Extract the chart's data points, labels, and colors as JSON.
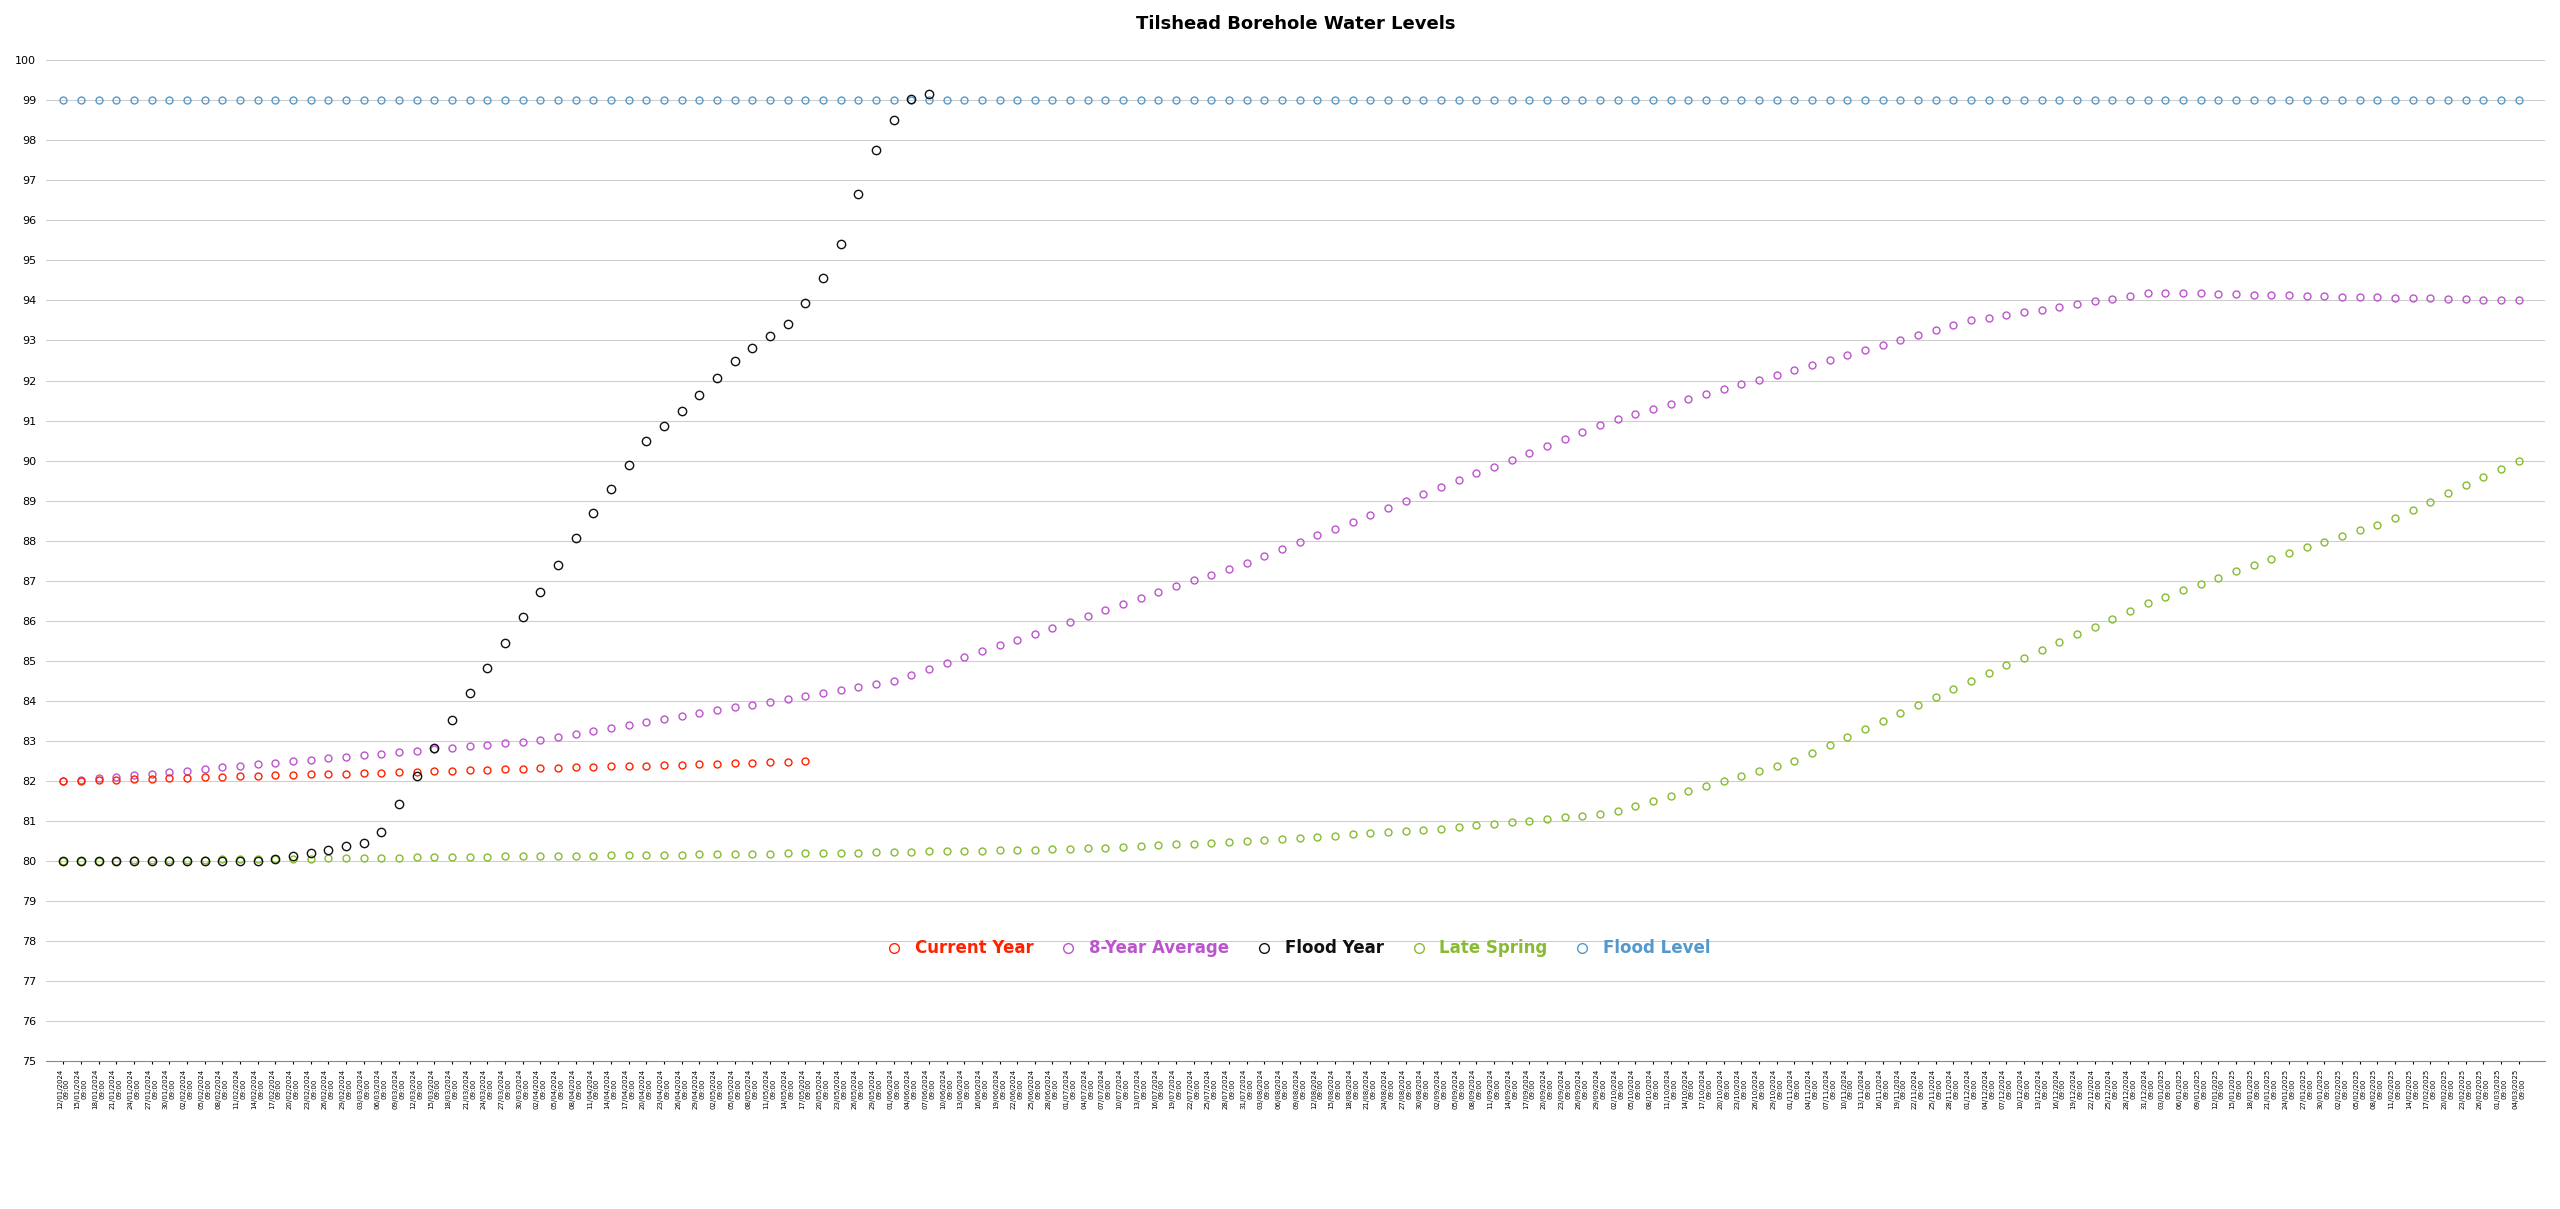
{
  "title": "Tilshead Borehole Water Levels",
  "title_fontsize": 13,
  "title_fontweight": "bold",
  "ylim": [
    75,
    100.5
  ],
  "ytick_min": 75,
  "ytick_max": 100,
  "flood_level_color": "#5599CC",
  "flood_year_color": "#111111",
  "avg_8yr_color": "#BB55CC",
  "current_year_color": "#FF2200",
  "late_spring_color": "#88BB33",
  "legend_labels": [
    "Current Year",
    "8-Year Average",
    "Flood Year",
    "Late Spring",
    "Flood Level"
  ],
  "legend_colors": [
    "#FF2200",
    "#BB55CC",
    "#111111",
    "#88BB33",
    "#5599CC"
  ],
  "marker": "o",
  "marker_facecolor": "none",
  "marker_size": 5,
  "background_color": "#FFFFFF",
  "grid_color": "#CCCCCC"
}
